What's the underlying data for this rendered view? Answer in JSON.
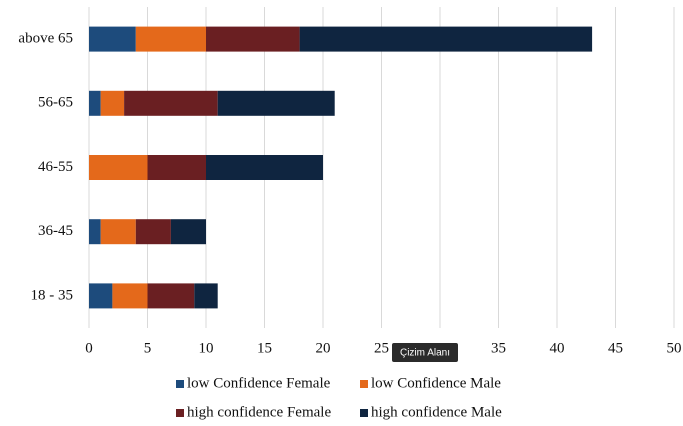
{
  "chart_data": {
    "type": "stacked_bar_horizontal",
    "categories": [
      "above 65",
      "56-65",
      "46-55",
      "36-45",
      "18 - 35"
    ],
    "series": [
      {
        "name": "low Confidence Female",
        "color": "#1d4b7c",
        "values": [
          4,
          1,
          0,
          1,
          2
        ]
      },
      {
        "name": "low Confidence Male",
        "color": "#e4691b",
        "values": [
          6,
          2,
          5,
          3,
          3
        ]
      },
      {
        "name": "high confidence Female",
        "color": "#6a1f22",
        "values": [
          8,
          8,
          5,
          3,
          4
        ]
      },
      {
        "name": "high confidence Male",
        "color": "#0f2540",
        "values": [
          25,
          10,
          10,
          3,
          2
        ]
      }
    ],
    "xlim": [
      0,
      50
    ],
    "xticks": [
      0,
      5,
      10,
      15,
      20,
      25,
      30,
      35,
      40,
      45,
      50
    ],
    "grid": true,
    "legend": "bottom",
    "tooltip": "Çizim Alanı"
  }
}
